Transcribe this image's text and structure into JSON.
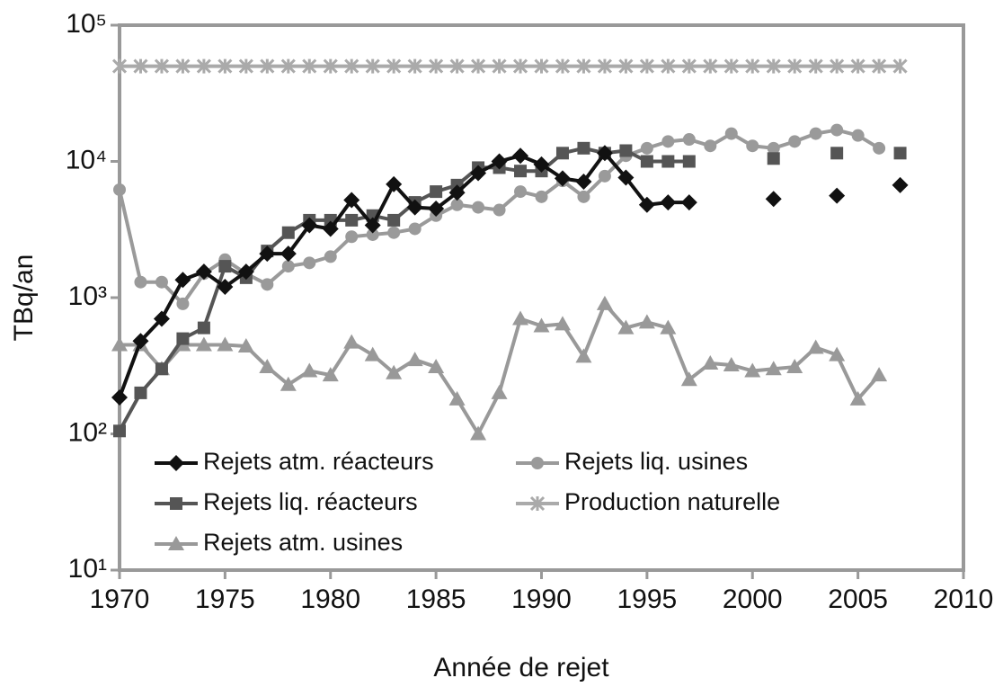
{
  "chart_data": {
    "type": "line",
    "x_label": "Année de rejet",
    "y_label": "TBq/an",
    "log_y": true,
    "legend": "lower left",
    "xlim": [
      1970,
      2010
    ],
    "xticks": [
      1970,
      1975,
      1980,
      1985,
      1990,
      1995,
      2000,
      2005,
      2010
    ],
    "ylim": [
      10,
      100000
    ],
    "yticks": [
      {
        "value": 10,
        "label": "10¹"
      },
      {
        "value": 100,
        "label": "10²"
      },
      {
        "value": 1000,
        "label": "10³"
      },
      {
        "value": 10000,
        "label": "10⁴"
      },
      {
        "value": 100000,
        "label": "10⁵"
      }
    ],
    "x": [
      1970,
      1971,
      1972,
      1973,
      1974,
      1975,
      1976,
      1977,
      1978,
      1979,
      1980,
      1981,
      1982,
      1983,
      1984,
      1985,
      1986,
      1987,
      1988,
      1989,
      1990,
      1991,
      1992,
      1993,
      1994,
      1995,
      1996,
      1997,
      1998,
      1999,
      2000,
      2001,
      2002,
      2003,
      2004,
      2005,
      2006,
      2007
    ],
    "series": [
      {
        "name": "Rejets atm. réacteurs",
        "color": "#111111",
        "marker": "diamond",
        "values": [
          185,
          480,
          700,
          1350,
          1550,
          1200,
          1550,
          2100,
          2100,
          3400,
          3200,
          5200,
          3400,
          6800,
          4600,
          4500,
          5900,
          8200,
          10000,
          11000,
          9500,
          7500,
          7100,
          11500,
          7600,
          4800,
          5000,
          5000,
          null,
          null,
          null,
          5300,
          null,
          null,
          5600,
          null,
          null,
          6700
        ]
      },
      {
        "name": "Rejets liq. réacteurs",
        "color": "#555555",
        "marker": "square",
        "values": [
          105,
          200,
          300,
          500,
          600,
          1700,
          1400,
          2200,
          3000,
          3700,
          3700,
          3700,
          4000,
          3700,
          5000,
          6000,
          6700,
          9000,
          9000,
          8500,
          8500,
          11500,
          12500,
          11500,
          12000,
          10000,
          10000,
          10000,
          null,
          null,
          null,
          10500,
          null,
          null,
          11500,
          null,
          null,
          11500
        ]
      },
      {
        "name": "Rejets atm. usines",
        "color": "#999999",
        "marker": "triangle",
        "values": [
          450,
          450,
          300,
          450,
          450,
          450,
          440,
          310,
          230,
          290,
          270,
          470,
          380,
          280,
          350,
          310,
          180,
          100,
          200,
          700,
          620,
          640,
          370,
          900,
          600,
          660,
          600,
          250,
          330,
          320,
          290,
          300,
          310,
          430,
          380,
          180,
          270,
          null
        ]
      },
      {
        "name": "Rejets liq. usines",
        "color": "#9a9a9a",
        "marker": "circle",
        "values": [
          6200,
          1300,
          1300,
          900,
          1500,
          1900,
          1500,
          1250,
          1700,
          1800,
          2000,
          2800,
          2900,
          3000,
          3200,
          4000,
          4800,
          4600,
          4400,
          6000,
          5500,
          7200,
          5500,
          7800,
          11000,
          12500,
          14000,
          14500,
          13000,
          16000,
          13000,
          12500,
          14000,
          16000,
          17000,
          15500,
          12500,
          null
        ]
      },
      {
        "name": "Production naturelle",
        "color": "#aaaaaa",
        "marker": "x",
        "values": [
          50000,
          50000,
          50000,
          50000,
          50000,
          50000,
          50000,
          50000,
          50000,
          50000,
          50000,
          50000,
          50000,
          50000,
          50000,
          50000,
          50000,
          50000,
          50000,
          50000,
          50000,
          50000,
          50000,
          50000,
          50000,
          50000,
          50000,
          50000,
          50000,
          50000,
          50000,
          50000,
          50000,
          50000,
          50000,
          50000,
          50000,
          50000
        ]
      }
    ]
  }
}
